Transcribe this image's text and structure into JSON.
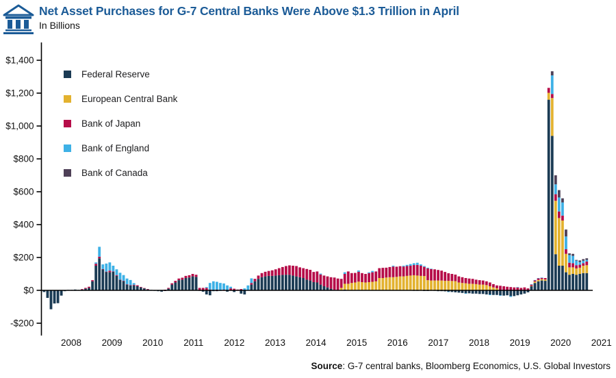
{
  "header": {
    "icon": "bank-icon",
    "title": "Net Asset Purchases for G-7 Central Banks Were Above $1.3 Trillion in April",
    "subtitle": "In Billions"
  },
  "footer": {
    "source_label": "Source",
    "source_text": ": G-7 central banks, Bloomberg Economics, U.S. Global Investors"
  },
  "colors": {
    "title_blue": "#1b5b97",
    "axis_black": "#000000",
    "federal_reserve": "#1b3b54",
    "european_central_bank": "#e3b22f",
    "bank_of_japan": "#b60d49",
    "bank_of_england": "#3eb1e6",
    "bank_of_canada": "#4e4057"
  },
  "chart_data": {
    "type": "bar",
    "stacked": true,
    "unit": "USD billions, monthly net asset purchases",
    "x_monthly_start": "2008-01",
    "x_monthly_end": "2021-02",
    "grid": false,
    "legend_position": "upper-left-inside",
    "ylim": [
      -200,
      1400
    ],
    "ytick_values": [
      1400,
      1200,
      1000,
      800,
      600,
      400,
      200,
      0,
      -200
    ],
    "ytick_labels": [
      "$1,400",
      "$1,200",
      "$1,000",
      "$800",
      "$600",
      "$400",
      "$200",
      "$0",
      "-$200"
    ],
    "year_labels": [
      "2008",
      "2009",
      "2010",
      "2011",
      "2012",
      "2013",
      "2014",
      "2015",
      "2016",
      "2017",
      "2018",
      "2019",
      "2020",
      "2021"
    ],
    "series": [
      {
        "name": "Federal Reserve",
        "color": "#1b3b54",
        "values": [
          -10,
          -46,
          -115,
          -80,
          -78,
          -32,
          -5,
          3,
          3,
          5,
          3,
          5,
          10,
          15,
          55,
          150,
          195,
          128,
          112,
          110,
          113,
          88,
          63,
          56,
          35,
          30,
          30,
          25,
          18,
          12,
          6,
          3,
          -3,
          -5,
          -8,
          -4,
          10,
          35,
          48,
          62,
          65,
          75,
          78,
          85,
          82,
          -3,
          -8,
          -25,
          -30,
          -5,
          -5,
          -3,
          0,
          -8,
          0,
          -10,
          0,
          -20,
          -25,
          0,
          35,
          55,
          70,
          80,
          85,
          88,
          88,
          90,
          92,
          94,
          95,
          95,
          90,
          85,
          80,
          75,
          65,
          60,
          50,
          48,
          35,
          25,
          18,
          10,
          3,
          0,
          0,
          5,
          0,
          0,
          0,
          3,
          0,
          0,
          0,
          0,
          0,
          0,
          0,
          0,
          0,
          0,
          0,
          0,
          0,
          0,
          0,
          -3,
          -3,
          0,
          -4,
          -4,
          -2,
          -3,
          -5,
          -5,
          -6,
          -8,
          -10,
          -12,
          -14,
          -16,
          -18,
          -18,
          -20,
          -20,
          -22,
          -22,
          -25,
          -25,
          -28,
          -28,
          -30,
          -32,
          -30,
          -35,
          -35,
          -30,
          -25,
          -20,
          -12,
          25,
          45,
          55,
          60,
          58,
          1160,
          940,
          220,
          150,
          150,
          110,
          95,
          100,
          95,
          100,
          105,
          105
        ]
      },
      {
        "name": "European Central Bank",
        "color": "#e3b22f",
        "values": [
          0,
          0,
          0,
          0,
          0,
          0,
          0,
          0,
          0,
          0,
          0,
          0,
          0,
          0,
          0,
          0,
          0,
          0,
          0,
          0,
          0,
          0,
          0,
          0,
          0,
          0,
          0,
          0,
          0,
          0,
          0,
          0,
          0,
          0,
          0,
          0,
          0,
          0,
          0,
          0,
          0,
          0,
          0,
          0,
          0,
          0,
          0,
          0,
          0,
          0,
          0,
          0,
          0,
          0,
          0,
          0,
          0,
          0,
          0,
          0,
          0,
          0,
          0,
          0,
          0,
          0,
          0,
          0,
          0,
          0,
          0,
          0,
          0,
          0,
          0,
          0,
          0,
          0,
          0,
          0,
          0,
          0,
          0,
          0,
          0,
          0,
          15,
          35,
          40,
          45,
          48,
          50,
          50,
          48,
          50,
          52,
          55,
          75,
          75,
          78,
          80,
          80,
          82,
          85,
          85,
          88,
          90,
          92,
          90,
          88,
          87,
          62,
          60,
          60,
          60,
          60,
          58,
          58,
          57,
          56,
          48,
          45,
          43,
          40,
          40,
          38,
          35,
          35,
          32,
          25,
          18,
          12,
          0,
          0,
          0,
          0,
          0,
          0,
          0,
          0,
          0,
          2,
          8,
          8,
          8,
          8,
          42,
          230,
          325,
          290,
          275,
          112,
          45,
          40,
          38,
          38,
          45,
          48
        ]
      },
      {
        "name": "Bank of Japan",
        "color": "#b60d49",
        "values": [
          0,
          0,
          0,
          0,
          0,
          0,
          0,
          0,
          0,
          0,
          0,
          3,
          5,
          7,
          7,
          12,
          10,
          2,
          2,
          10,
          2,
          5,
          2,
          2,
          2,
          2,
          4,
          6,
          3,
          2,
          2,
          0,
          0,
          0,
          2,
          4,
          5,
          8,
          10,
          10,
          12,
          13,
          14,
          15,
          13,
          15,
          15,
          15,
          5,
          0,
          4,
          0,
          4,
          0,
          12,
          10,
          5,
          8,
          0,
          0,
          10,
          15,
          20,
          25,
          28,
          30,
          34,
          38,
          43,
          48,
          53,
          57,
          60,
          63,
          60,
          60,
          65,
          65,
          62,
          67,
          62,
          65,
          67,
          70,
          75,
          72,
          55,
          60,
          75,
          60,
          58,
          60,
          55,
          52,
          55,
          58,
          60,
          60,
          62,
          60,
          62,
          65,
          62,
          62,
          60,
          60,
          60,
          62,
          65,
          62,
          56,
          72,
          70,
          68,
          64,
          60,
          54,
          46,
          43,
          40,
          37,
          35,
          32,
          32,
          30,
          27,
          27,
          25,
          23,
          23,
          20,
          18,
          28,
          25,
          22,
          20,
          18,
          18,
          15,
          18,
          12,
          8,
          8,
          10,
          8,
          9,
          30,
          25,
          40,
          40,
          30,
          28,
          28,
          25,
          20,
          18,
          15,
          22
        ]
      },
      {
        "name": "Bank of England",
        "color": "#3eb1e6",
        "values": [
          0,
          0,
          0,
          0,
          0,
          0,
          0,
          0,
          0,
          0,
          0,
          0,
          0,
          0,
          0,
          8,
          60,
          28,
          49,
          50,
          35,
          35,
          42,
          35,
          35,
          31,
          10,
          0,
          0,
          0,
          0,
          0,
          0,
          0,
          0,
          0,
          0,
          0,
          0,
          0,
          0,
          0,
          0,
          0,
          0,
          0,
          0,
          5,
          40,
          55,
          48,
          45,
          38,
          30,
          10,
          0,
          0,
          0,
          12,
          30,
          28,
          0,
          0,
          0,
          0,
          0,
          0,
          0,
          0,
          0,
          0,
          0,
          0,
          0,
          0,
          0,
          0,
          0,
          0,
          0,
          5,
          0,
          0,
          0,
          0,
          0,
          0,
          10,
          0,
          0,
          0,
          8,
          0,
          0,
          5,
          8,
          0,
          0,
          0,
          0,
          0,
          5,
          0,
          0,
          5,
          7,
          10,
          11,
          13,
          8,
          5,
          4,
          2,
          0,
          0,
          0,
          0,
          -2,
          0,
          0,
          0,
          0,
          -3,
          0,
          0,
          0,
          0,
          0,
          0,
          -4,
          0,
          0,
          -3,
          0,
          0,
          -5,
          0,
          2,
          0,
          0,
          0,
          2,
          2,
          2,
          2,
          0,
          0,
          113,
          60,
          85,
          80,
          78,
          47,
          45,
          28,
          16,
          15,
          10
        ]
      },
      {
        "name": "Bank of Canada",
        "color": "#4e4057",
        "values": [
          0,
          0,
          0,
          0,
          0,
          0,
          0,
          0,
          0,
          0,
          0,
          0,
          0,
          0,
          0,
          0,
          0,
          0,
          0,
          0,
          0,
          0,
          0,
          0,
          0,
          0,
          0,
          0,
          0,
          0,
          0,
          0,
          0,
          0,
          0,
          0,
          0,
          0,
          0,
          0,
          0,
          0,
          0,
          0,
          0,
          0,
          0,
          0,
          0,
          0,
          0,
          0,
          0,
          0,
          0,
          0,
          0,
          0,
          0,
          0,
          0,
          0,
          0,
          0,
          0,
          0,
          0,
          0,
          0,
          0,
          0,
          0,
          0,
          0,
          0,
          0,
          0,
          0,
          0,
          0,
          0,
          0,
          0,
          0,
          0,
          0,
          0,
          0,
          0,
          0,
          0,
          0,
          0,
          0,
          0,
          0,
          0,
          0,
          0,
          0,
          0,
          0,
          0,
          0,
          0,
          0,
          0,
          0,
          0,
          0,
          0,
          0,
          0,
          0,
          0,
          0,
          0,
          0,
          0,
          0,
          0,
          0,
          0,
          0,
          0,
          0,
          0,
          0,
          0,
          0,
          0,
          0,
          0,
          0,
          0,
          0,
          0,
          0,
          0,
          0,
          0,
          0,
          0,
          0,
          0,
          0,
          0,
          25,
          55,
          45,
          25,
          42,
          10,
          12,
          4,
          10,
          10,
          10
        ]
      }
    ]
  }
}
